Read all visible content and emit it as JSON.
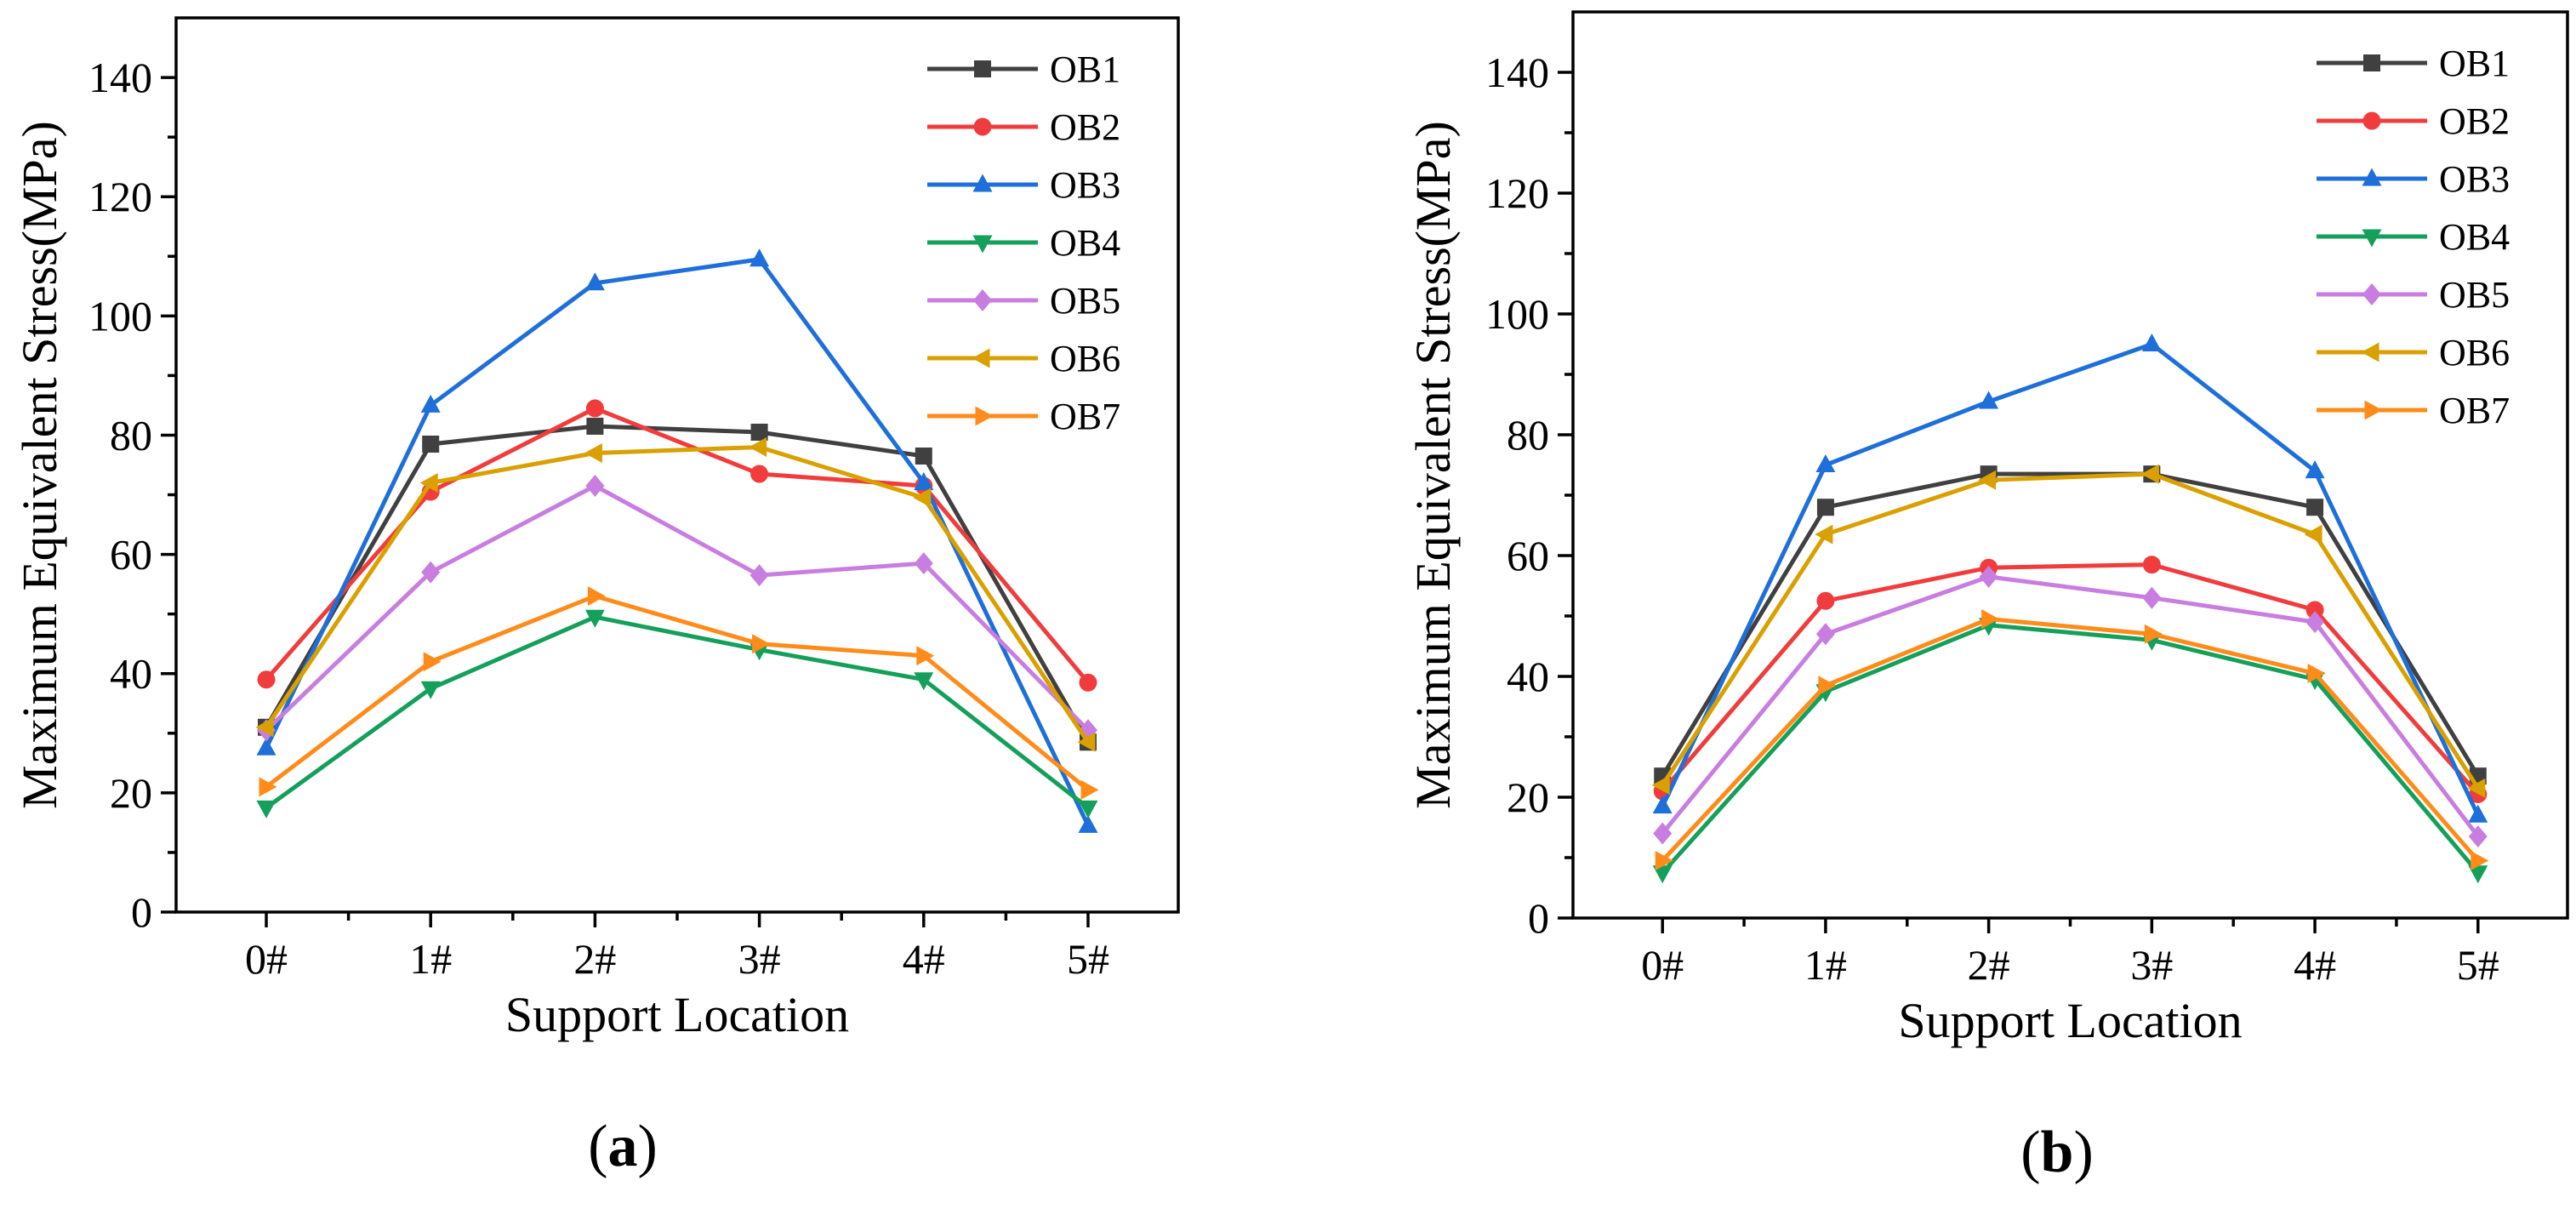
{
  "chart_data": [
    {
      "type": "line",
      "panel_label": "a",
      "xlabel": "Support Location",
      "ylabel": "Maximum Equivalent Stress(MPa)",
      "categories": [
        "0#",
        "1#",
        "2#",
        "3#",
        "4#",
        "5#"
      ],
      "ylim": [
        0,
        150
      ],
      "yticks": [
        0,
        20,
        40,
        60,
        80,
        100,
        120,
        140
      ],
      "legend_position": "top-right",
      "series": [
        {
          "name": "OB1",
          "color": "#404040",
          "marker": "square",
          "values": [
            31,
            78.5,
            81.5,
            80.5,
            76.5,
            28.5
          ]
        },
        {
          "name": "OB2",
          "color": "#f03c3c",
          "marker": "circle",
          "values": [
            39,
            70.5,
            84.5,
            73.5,
            71.5,
            38.5
          ]
        },
        {
          "name": "OB3",
          "color": "#1e6fd9",
          "marker": "triangle-up",
          "values": [
            27.5,
            85,
            105.5,
            109.5,
            72,
            14.5
          ]
        },
        {
          "name": "OB4",
          "color": "#14a05a",
          "marker": "triangle-down",
          "values": [
            17.5,
            37.5,
            49.5,
            44,
            39,
            17.5
          ]
        },
        {
          "name": "OB5",
          "color": "#c77ee0",
          "marker": "diamond",
          "values": [
            30.5,
            57,
            71.5,
            56.5,
            58.5,
            30.5
          ]
        },
        {
          "name": "OB6",
          "color": "#d9a000",
          "marker": "triangle-left",
          "values": [
            31,
            72,
            77,
            78,
            69.5,
            28.5
          ]
        },
        {
          "name": "OB7",
          "color": "#ff8c1a",
          "marker": "triangle-right",
          "values": [
            21,
            42,
            53,
            45,
            43,
            20.5
          ]
        }
      ]
    },
    {
      "type": "line",
      "panel_label": "b",
      "xlabel": "Support Location",
      "ylabel": "Maximum Equivalent Stress(MPa)",
      "categories": [
        "0#",
        "1#",
        "2#",
        "3#",
        "4#",
        "5#"
      ],
      "ylim": [
        0,
        150
      ],
      "yticks": [
        0,
        20,
        40,
        60,
        80,
        100,
        120,
        140
      ],
      "legend_position": "top-right",
      "series": [
        {
          "name": "OB1",
          "color": "#404040",
          "marker": "square",
          "values": [
            23.5,
            68,
            73.5,
            73.5,
            68,
            23.5
          ]
        },
        {
          "name": "OB2",
          "color": "#f03c3c",
          "marker": "circle",
          "values": [
            21,
            52.5,
            58,
            58.5,
            51,
            20.5
          ]
        },
        {
          "name": "OB3",
          "color": "#1e6fd9",
          "marker": "triangle-up",
          "values": [
            18.5,
            75,
            85.5,
            95,
            74,
            17
          ]
        },
        {
          "name": "OB4",
          "color": "#14a05a",
          "marker": "triangle-down",
          "values": [
            7.5,
            37.5,
            48.5,
            46,
            39.5,
            7.5
          ]
        },
        {
          "name": "OB5",
          "color": "#c77ee0",
          "marker": "diamond",
          "values": [
            14,
            47,
            56.5,
            53,
            49,
            13.5
          ]
        },
        {
          "name": "OB6",
          "color": "#d9a000",
          "marker": "triangle-left",
          "values": [
            22,
            63.5,
            72.5,
            73.5,
            63.5,
            21.5
          ]
        },
        {
          "name": "OB7",
          "color": "#ff8c1a",
          "marker": "triangle-right",
          "values": [
            9.5,
            38.5,
            49.5,
            47,
            40.5,
            9.5
          ]
        }
      ]
    }
  ]
}
